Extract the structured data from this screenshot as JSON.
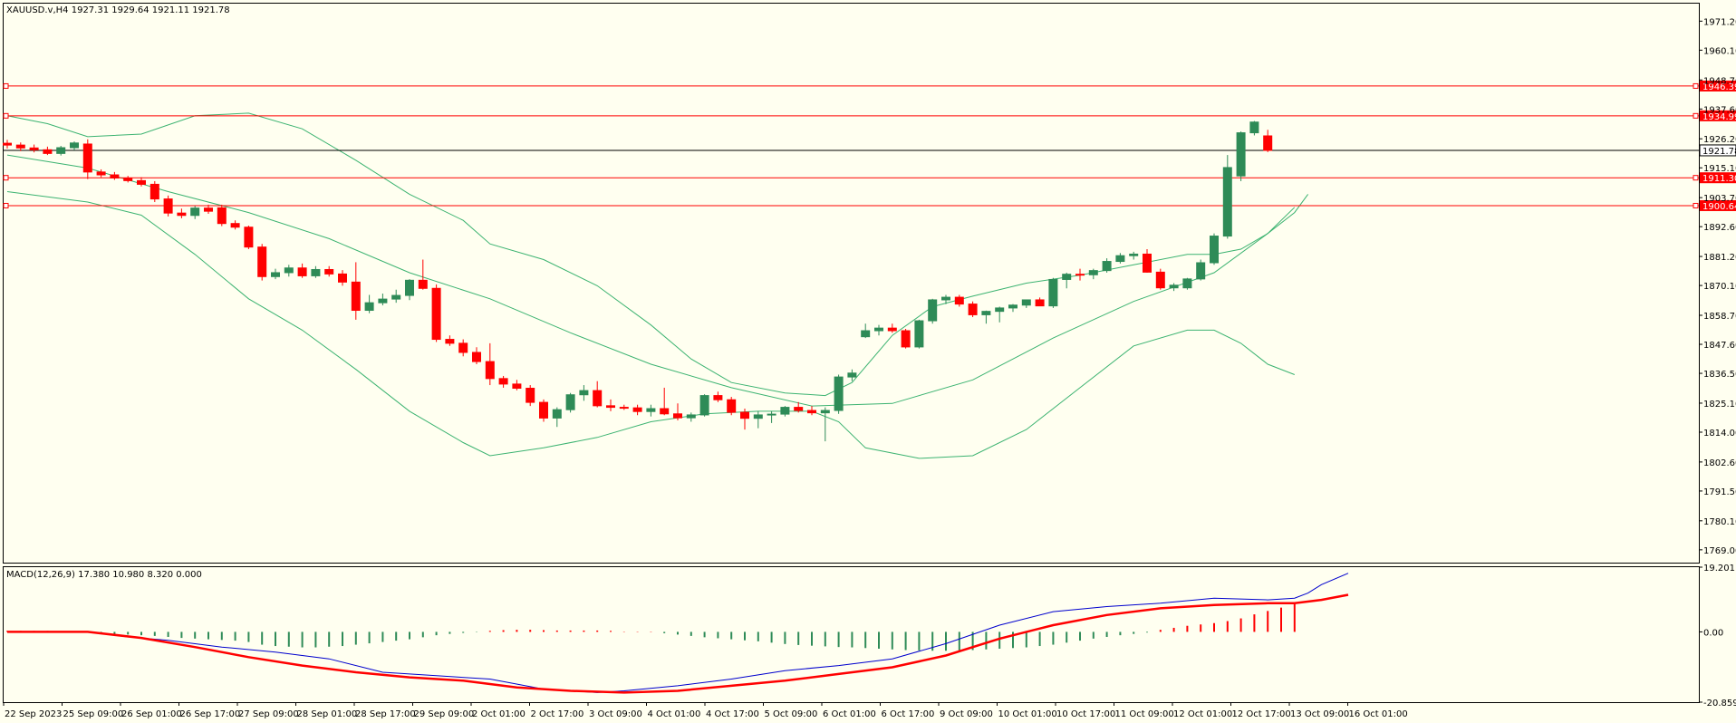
{
  "chart_data": {
    "type": "candlestick",
    "symbol_header": "XAUUSD.v,H4  1927.31 1929.64 1921.11 1921.78",
    "current_price": 1921.78,
    "current_price_label": "1921.78",
    "colors": {
      "background": "#fffff0",
      "bull": "#2e8b57",
      "bear": "#ff0000",
      "bands": "#3cb371",
      "hline": "#ff0000",
      "price_line": "#000000",
      "macd_main": "#0000cd",
      "macd_signal": "#ff0000",
      "hist_pos": "#ff0000",
      "hist_neg": "#2e8b57"
    },
    "price_axis": {
      "ylim": [
        1764.1,
        1977.9
      ],
      "ticks": [
        "1971.20",
        "1960.10",
        "1948.70",
        "1937.60",
        "1926.20",
        "1915.10",
        "1903.70",
        "1892.60",
        "1881.20",
        "1870.10",
        "1858.70",
        "1847.60",
        "1836.50",
        "1825.10",
        "1814.00",
        "1802.60",
        "1791.50",
        "1780.10",
        "1769.00"
      ]
    },
    "horizontal_lines": [
      {
        "label": "1946.39",
        "value": 1946.39
      },
      {
        "label": "1934.99",
        "value": 1934.99
      },
      {
        "label": "1911.30",
        "value": 1911.3
      },
      {
        "label": "1900.64",
        "value": 1900.64
      }
    ],
    "time_axis": [
      "22 Sep 2023",
      "25 Sep 09:00",
      "26 Sep 01:00",
      "26 Sep 17:00",
      "27 Sep 09:00",
      "28 Sep 01:00",
      "28 Sep 17:00",
      "29 Sep 09:00",
      "2 Oct 01:00",
      "2 Oct 17:00",
      "3 Oct 09:00",
      "4 Oct 01:00",
      "4 Oct 17:00",
      "5 Oct 09:00",
      "6 Oct 01:00",
      "6 Oct 17:00",
      "9 Oct 09:00",
      "10 Oct 01:00",
      "10 Oct 17:00",
      "11 Oct 09:00",
      "12 Oct 01:00",
      "12 Oct 17:00",
      "13 Oct 09:00",
      "16 Oct 01:00"
    ],
    "candles": [
      [
        1924.5,
        1925.8,
        1922.5,
        1923.8
      ],
      [
        1923.8,
        1924.8,
        1921.5,
        1922.7
      ],
      [
        1922.7,
        1924.0,
        1921.0,
        1922.0
      ],
      [
        1922.0,
        1923.2,
        1920.0,
        1920.6
      ],
      [
        1920.6,
        1923.5,
        1919.8,
        1922.8
      ],
      [
        1922.8,
        1925.2,
        1921.8,
        1924.6
      ],
      [
        1924.2,
        1926.0,
        1910.8,
        1913.5
      ],
      [
        1913.5,
        1914.5,
        1911.5,
        1912.4
      ],
      [
        1912.4,
        1913.5,
        1910.5,
        1911.2
      ],
      [
        1911.2,
        1912.0,
        1909.5,
        1910.2
      ],
      [
        1910.2,
        1911.5,
        1908.0,
        1908.8
      ],
      [
        1908.8,
        1910.0,
        1902.0,
        1903.2
      ],
      [
        1903.2,
        1904.5,
        1896.5,
        1897.8
      ],
      [
        1897.8,
        1899.5,
        1895.8,
        1896.9
      ],
      [
        1896.9,
        1900.5,
        1895.5,
        1899.7
      ],
      [
        1899.7,
        1901.0,
        1897.5,
        1898.5
      ],
      [
        1899.8,
        1901.0,
        1892.8,
        1893.8
      ],
      [
        1893.8,
        1895.0,
        1891.5,
        1892.4
      ],
      [
        1892.4,
        1893.0,
        1884.0,
        1884.8
      ],
      [
        1884.8,
        1886.0,
        1872.0,
        1873.5
      ],
      [
        1873.5,
        1876.5,
        1872.5,
        1875.0
      ],
      [
        1875.0,
        1878.0,
        1873.5,
        1876.8
      ],
      [
        1876.8,
        1878.5,
        1873.0,
        1873.8
      ],
      [
        1873.8,
        1877.5,
        1873.0,
        1876.2
      ],
      [
        1876.2,
        1877.5,
        1873.5,
        1874.5
      ],
      [
        1874.5,
        1876.0,
        1870.0,
        1871.4
      ],
      [
        1871.4,
        1879.0,
        1857.0,
        1860.6
      ],
      [
        1860.6,
        1866.5,
        1859.5,
        1863.5
      ],
      [
        1863.5,
        1867.0,
        1862.5,
        1864.9
      ],
      [
        1864.9,
        1868.5,
        1863.5,
        1866.3
      ],
      [
        1866.3,
        1872.5,
        1864.5,
        1872.1
      ],
      [
        1872.1,
        1880.0,
        1868.5,
        1869.0
      ],
      [
        1869.0,
        1870.5,
        1848.5,
        1849.5
      ],
      [
        1849.5,
        1851.0,
        1847.0,
        1848.0
      ],
      [
        1848.0,
        1849.5,
        1843.0,
        1844.5
      ],
      [
        1844.5,
        1846.5,
        1840.0,
        1841.0
      ],
      [
        1841.0,
        1848.0,
        1832.0,
        1834.5
      ],
      [
        1834.5,
        1835.5,
        1831.0,
        1832.4
      ],
      [
        1832.4,
        1834.0,
        1830.0,
        1830.8
      ],
      [
        1830.8,
        1832.0,
        1824.0,
        1825.4
      ],
      [
        1825.4,
        1826.5,
        1818.0,
        1819.4
      ],
      [
        1819.4,
        1823.5,
        1816.0,
        1822.6
      ],
      [
        1822.6,
        1829.0,
        1821.5,
        1828.3
      ],
      [
        1828.3,
        1832.0,
        1826.0,
        1829.9
      ],
      [
        1829.9,
        1833.5,
        1823.5,
        1824.1
      ],
      [
        1824.1,
        1826.5,
        1822.0,
        1823.5
      ],
      [
        1823.5,
        1824.5,
        1822.5,
        1823.3
      ],
      [
        1823.3,
        1824.5,
        1820.5,
        1821.9
      ],
      [
        1821.9,
        1824.5,
        1820.0,
        1823.0
      ],
      [
        1823.0,
        1831.0,
        1820.5,
        1821.0
      ],
      [
        1821.0,
        1825.0,
        1818.5,
        1819.5
      ],
      [
        1819.5,
        1821.5,
        1818.0,
        1820.6
      ],
      [
        1820.6,
        1828.5,
        1820.0,
        1828.0
      ],
      [
        1828.0,
        1829.5,
        1825.5,
        1826.4
      ],
      [
        1826.4,
        1827.5,
        1820.5,
        1821.6
      ],
      [
        1821.6,
        1823.0,
        1815.0,
        1819.3
      ],
      [
        1819.3,
        1822.0,
        1815.5,
        1820.6
      ],
      [
        1820.6,
        1822.0,
        1817.5,
        1820.9
      ],
      [
        1820.9,
        1824.0,
        1820.0,
        1823.5
      ],
      [
        1823.5,
        1825.5,
        1821.5,
        1822.3
      ],
      [
        1822.3,
        1824.0,
        1820.5,
        1821.4
      ],
      [
        1821.4,
        1823.5,
        1810.5,
        1822.3
      ],
      [
        1822.3,
        1836.0,
        1821.0,
        1835.1
      ],
      [
        1835.1,
        1838.0,
        1833.5,
        1836.6
      ],
      [
        1850.5,
        1855.5,
        1850.0,
        1852.8
      ],
      [
        1852.8,
        1855.0,
        1851.0,
        1853.8
      ],
      [
        1853.8,
        1855.5,
        1852.0,
        1852.8
      ],
      [
        1852.8,
        1853.5,
        1846.0,
        1846.6
      ],
      [
        1846.6,
        1857.0,
        1846.0,
        1856.6
      ],
      [
        1856.6,
        1865.0,
        1855.5,
        1864.6
      ],
      [
        1864.6,
        1866.5,
        1863.0,
        1865.6
      ],
      [
        1865.6,
        1866.5,
        1862.0,
        1863.0
      ],
      [
        1863.0,
        1864.0,
        1858.0,
        1858.9
      ],
      [
        1858.9,
        1860.5,
        1855.5,
        1860.2
      ],
      [
        1860.2,
        1862.0,
        1856.0,
        1861.5
      ],
      [
        1861.5,
        1863.0,
        1860.0,
        1862.6
      ],
      [
        1862.6,
        1864.5,
        1861.5,
        1864.6
      ],
      [
        1864.6,
        1865.5,
        1862.5,
        1862.3
      ],
      [
        1862.3,
        1873.0,
        1861.5,
        1872.4
      ],
      [
        1872.4,
        1875.0,
        1869.0,
        1874.4
      ],
      [
        1874.4,
        1876.5,
        1872.0,
        1874.2
      ],
      [
        1874.2,
        1876.5,
        1872.5,
        1875.8
      ],
      [
        1875.8,
        1880.5,
        1875.0,
        1879.3
      ],
      [
        1879.3,
        1882.5,
        1878.5,
        1881.5
      ],
      [
        1881.5,
        1883.0,
        1880.0,
        1882.1
      ],
      [
        1882.1,
        1884.0,
        1875.0,
        1875.2
      ],
      [
        1875.2,
        1876.5,
        1868.5,
        1869.2
      ],
      [
        1869.2,
        1871.0,
        1868.0,
        1870.2
      ],
      [
        1869.2,
        1873.0,
        1868.5,
        1872.6
      ],
      [
        1872.6,
        1880.0,
        1872.0,
        1878.8
      ],
      [
        1878.8,
        1890.0,
        1878.0,
        1889.0
      ],
      [
        1889.0,
        1920.0,
        1888.0,
        1915.2
      ],
      [
        1912.0,
        1929.0,
        1910.0,
        1928.5
      ],
      [
        1928.5,
        1933.0,
        1927.5,
        1932.6
      ],
      [
        1927.31,
        1929.64,
        1921.11,
        1921.78
      ]
    ],
    "bands": {
      "middle": [
        [
          0,
          1920
        ],
        [
          6,
          1915
        ],
        [
          12,
          1906
        ],
        [
          18,
          1898
        ],
        [
          24,
          1888
        ],
        [
          30,
          1875
        ],
        [
          36,
          1865
        ],
        [
          42,
          1852
        ],
        [
          48,
          1840
        ],
        [
          54,
          1831
        ],
        [
          60,
          1824
        ],
        [
          66,
          1825
        ],
        [
          72,
          1834
        ],
        [
          78,
          1850
        ],
        [
          84,
          1864
        ],
        [
          90,
          1875
        ],
        [
          94,
          1890
        ],
        [
          96,
          1900
        ]
      ],
      "upper": [
        [
          0,
          1935
        ],
        [
          3,
          1932
        ],
        [
          6,
          1927
        ],
        [
          10,
          1928
        ],
        [
          14,
          1935
        ],
        [
          18,
          1936
        ],
        [
          22,
          1930
        ],
        [
          26,
          1918
        ],
        [
          30,
          1905
        ],
        [
          34,
          1895
        ],
        [
          36,
          1886
        ],
        [
          40,
          1880
        ],
        [
          44,
          1870
        ],
        [
          48,
          1855
        ],
        [
          51,
          1842
        ],
        [
          54,
          1833
        ],
        [
          58,
          1829
        ],
        [
          61,
          1828
        ],
        [
          63,
          1833
        ],
        [
          66,
          1851
        ],
        [
          69,
          1862
        ],
        [
          72,
          1866
        ],
        [
          76,
          1871
        ],
        [
          80,
          1874
        ],
        [
          84,
          1878
        ],
        [
          88,
          1882
        ],
        [
          90,
          1882
        ],
        [
          92,
          1884
        ],
        [
          94,
          1890
        ],
        [
          96,
          1898
        ],
        [
          97,
          1905
        ]
      ],
      "lower": [
        [
          0,
          1906
        ],
        [
          3,
          1904
        ],
        [
          6,
          1902
        ],
        [
          10,
          1897
        ],
        [
          14,
          1882
        ],
        [
          18,
          1865
        ],
        [
          22,
          1853
        ],
        [
          26,
          1838
        ],
        [
          30,
          1822
        ],
        [
          34,
          1810
        ],
        [
          36,
          1805
        ],
        [
          40,
          1808
        ],
        [
          44,
          1812
        ],
        [
          48,
          1818
        ],
        [
          52,
          1821
        ],
        [
          56,
          1822
        ],
        [
          60,
          1822
        ],
        [
          62,
          1818
        ],
        [
          64,
          1808
        ],
        [
          68,
          1804
        ],
        [
          72,
          1805
        ],
        [
          76,
          1815
        ],
        [
          80,
          1831
        ],
        [
          84,
          1847
        ],
        [
          88,
          1853
        ],
        [
          90,
          1853
        ],
        [
          92,
          1848
        ],
        [
          94,
          1840
        ],
        [
          96,
          1836
        ]
      ]
    },
    "macd": {
      "label": "MACD(12,26,9) 17.380 10.980 8.320 0.000",
      "ylim": [
        -20.859,
        19.201
      ],
      "ticks": [
        "19.201",
        "0.00",
        "-20.859"
      ],
      "histogram": [
        0.3,
        0.3,
        0.3,
        0.3,
        0.2,
        0.2,
        0.0,
        -0.3,
        -0.6,
        -0.8,
        -1.0,
        -1.2,
        -1.5,
        -1.8,
        -2.0,
        -2.2,
        -2.4,
        -2.6,
        -3.0,
        -3.8,
        -4.2,
        -4.4,
        -4.6,
        -4.6,
        -4.4,
        -4.2,
        -3.8,
        -3.4,
        -3.0,
        -2.6,
        -2.2,
        -1.6,
        -1.0,
        -0.6,
        -0.3,
        -0.1,
        0.3,
        0.5,
        0.6,
        0.6,
        0.5,
        0.4,
        0.4,
        0.4,
        0.4,
        0.3,
        0.1,
        0.1,
        0.1,
        -0.4,
        -0.8,
        -1.2,
        -1.6,
        -1.9,
        -2.2,
        -2.5,
        -2.8,
        -3.2,
        -3.6,
        -3.9,
        -4.1,
        -4.3,
        -4.5,
        -4.6,
        -4.8,
        -5.0,
        -5.2,
        -5.4,
        -5.5,
        -5.6,
        -5.6,
        -5.5,
        -5.4,
        -5.2,
        -5.0,
        -4.8,
        -4.6,
        -4.2,
        -3.8,
        -3.2,
        -2.6,
        -2.0,
        -1.5,
        -1.0,
        -0.6,
        -0.2,
        0.6,
        1.2,
        1.8,
        2.2,
        2.6,
        3.2,
        4.0,
        5.2,
        6.2,
        7.2,
        8.3
      ],
      "main": [
        [
          0,
          0
        ],
        [
          6,
          0
        ],
        [
          9,
          -1.5
        ],
        [
          12,
          -2.5
        ],
        [
          16,
          -4.5
        ],
        [
          20,
          -6
        ],
        [
          24,
          -8
        ],
        [
          28,
          -12
        ],
        [
          32,
          -13
        ],
        [
          36,
          -14
        ],
        [
          40,
          -17
        ],
        [
          44,
          -18
        ],
        [
          46,
          -17.5
        ],
        [
          50,
          -16
        ],
        [
          54,
          -14
        ],
        [
          58,
          -11.5
        ],
        [
          62,
          -10
        ],
        [
          66,
          -8
        ],
        [
          70,
          -3.5
        ],
        [
          74,
          2
        ],
        [
          78,
          6
        ],
        [
          82,
          7.5
        ],
        [
          86,
          8.5
        ],
        [
          90,
          10
        ],
        [
          94,
          9.5
        ],
        [
          96,
          10
        ],
        [
          97,
          11.5
        ],
        [
          98,
          14
        ],
        [
          100,
          17.4
        ]
      ],
      "signal": [
        [
          0,
          0
        ],
        [
          6,
          0
        ],
        [
          10,
          -1.8
        ],
        [
          14,
          -4.5
        ],
        [
          18,
          -7.5
        ],
        [
          22,
          -10
        ],
        [
          26,
          -12
        ],
        [
          30,
          -13.5
        ],
        [
          34,
          -14.5
        ],
        [
          38,
          -16.5
        ],
        [
          42,
          -17.5
        ],
        [
          46,
          -18
        ],
        [
          50,
          -17.5
        ],
        [
          54,
          -16
        ],
        [
          58,
          -14.5
        ],
        [
          62,
          -12.5
        ],
        [
          66,
          -10.5
        ],
        [
          70,
          -7
        ],
        [
          74,
          -2
        ],
        [
          78,
          2
        ],
        [
          82,
          5
        ],
        [
          86,
          7
        ],
        [
          90,
          8
        ],
        [
          94,
          8.5
        ],
        [
          96,
          8.5
        ],
        [
          98,
          9.5
        ],
        [
          100,
          11
        ]
      ]
    }
  }
}
